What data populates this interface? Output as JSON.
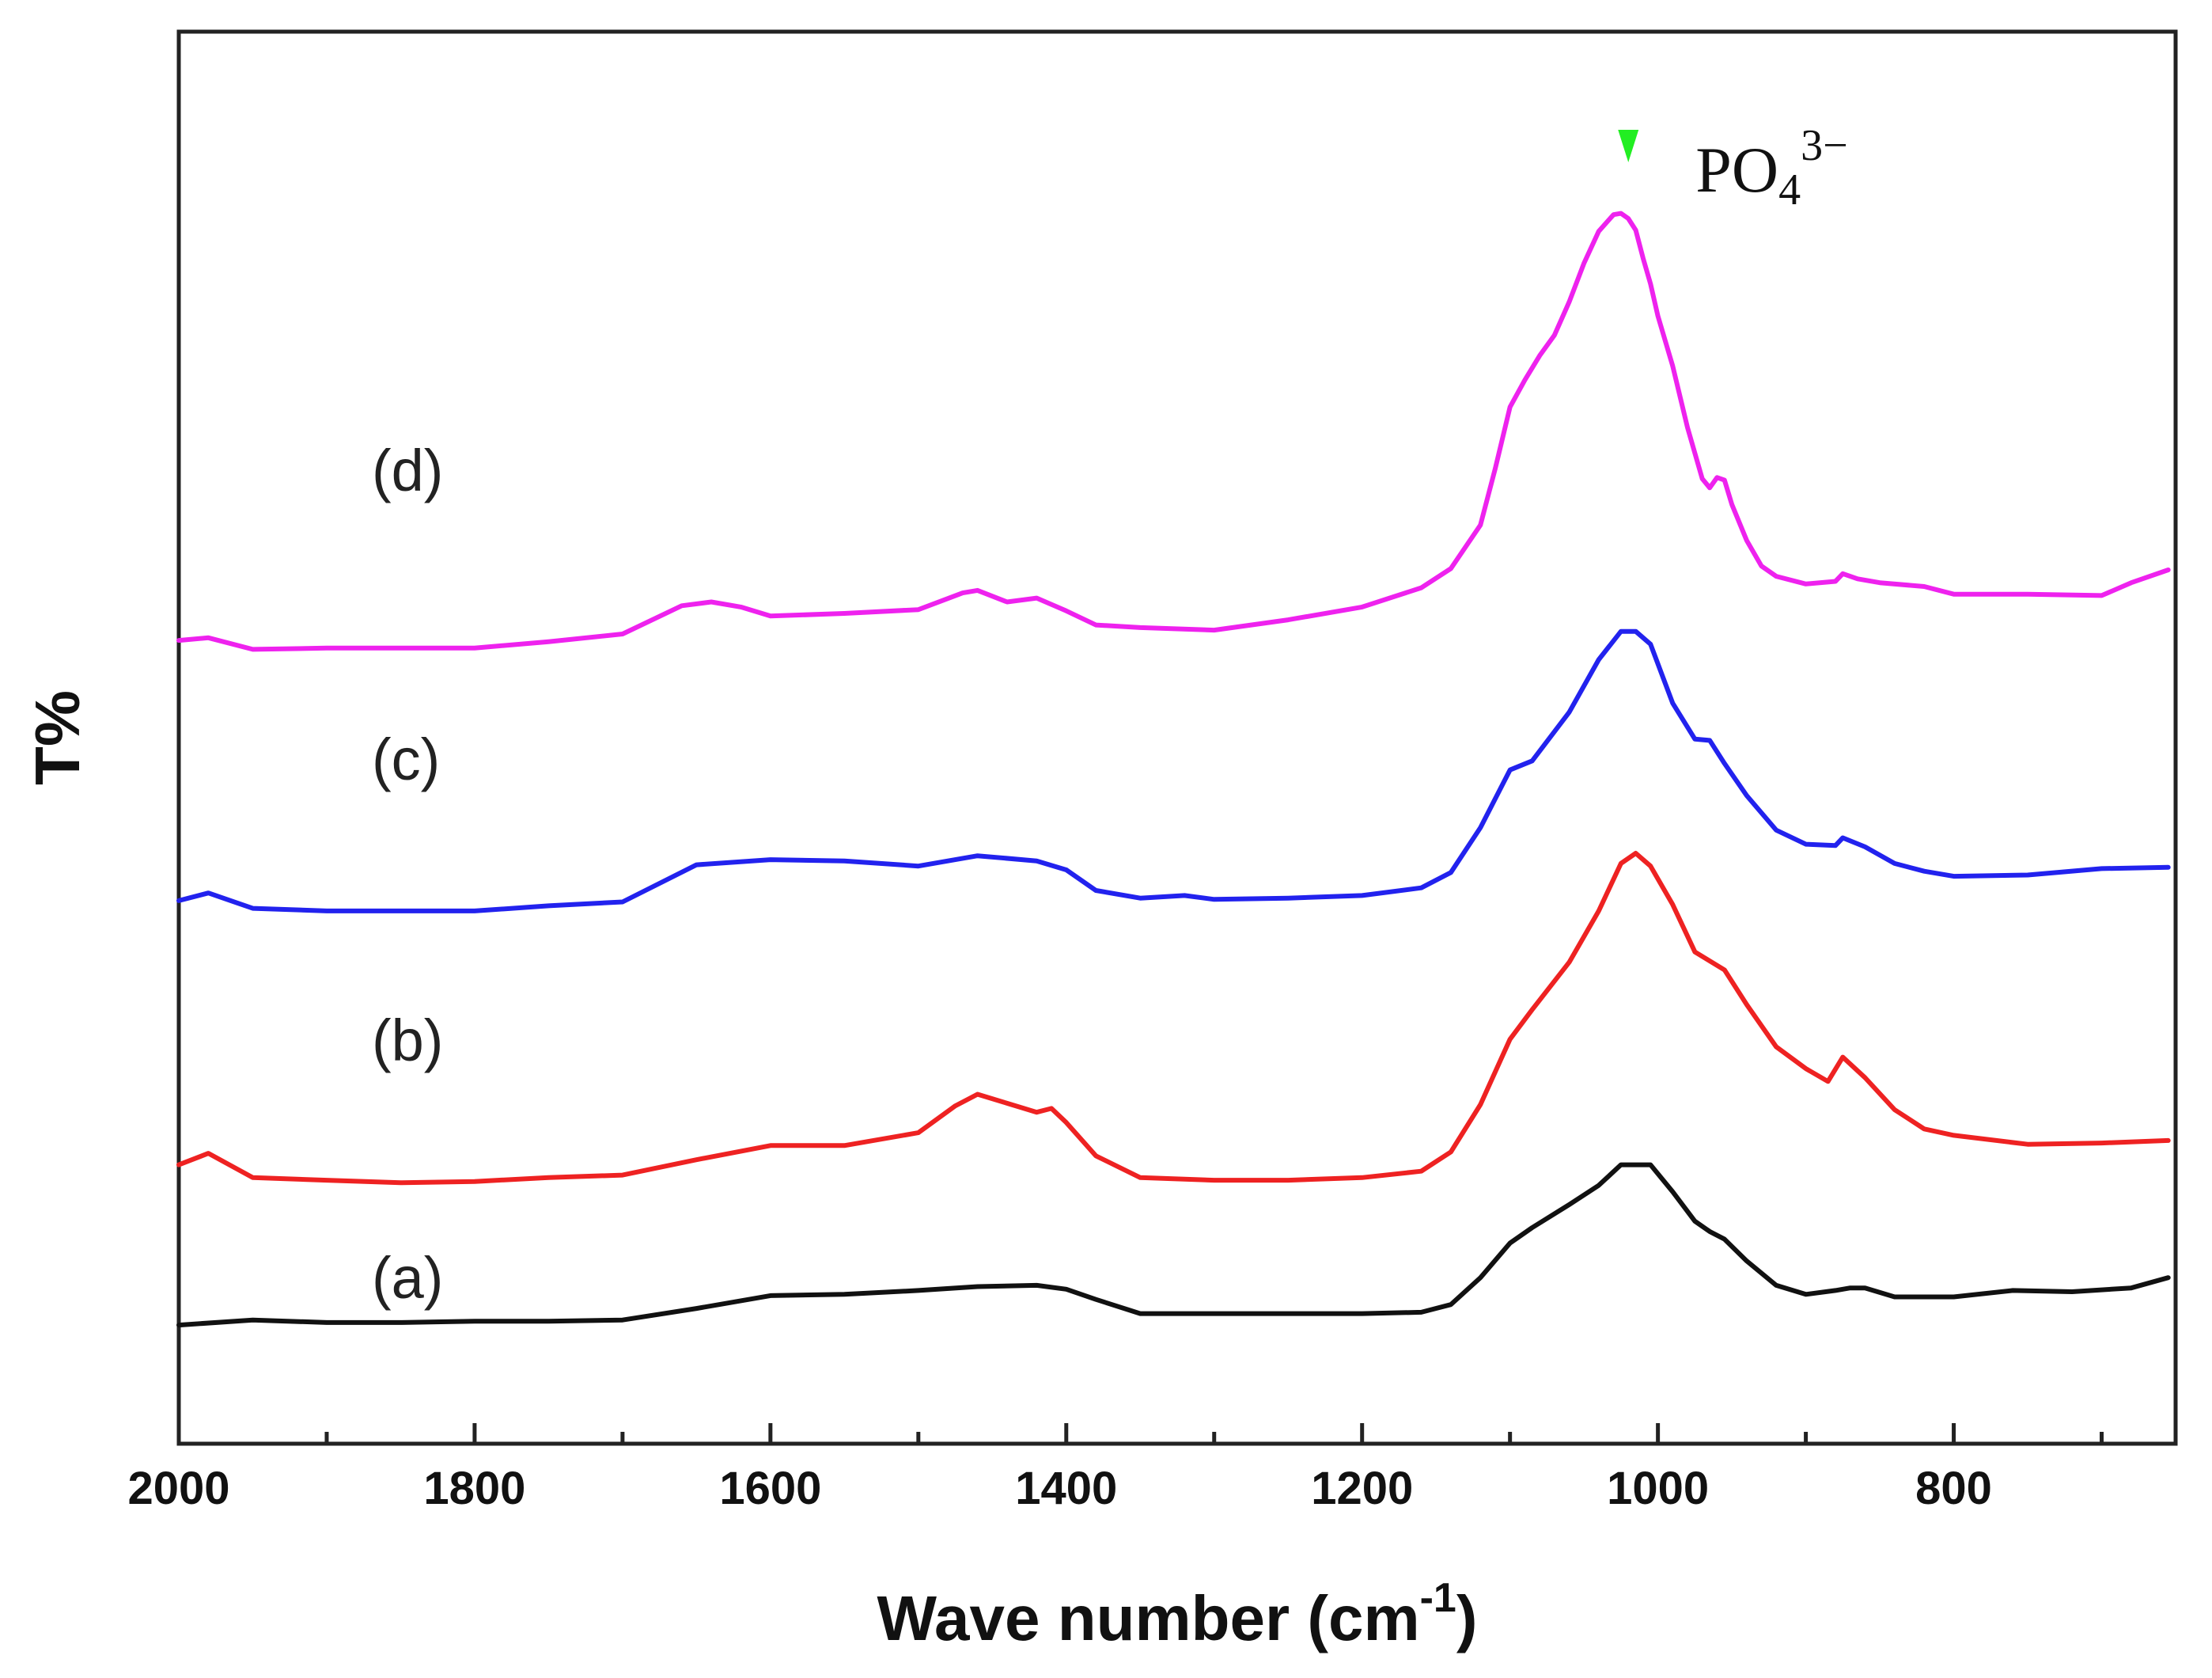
{
  "chart_data": {
    "type": "line",
    "title": "",
    "xlabel": "Wave number (cm",
    "xlabel_sup": "-1",
    "xlabel_close": ")",
    "ylabel": "T%",
    "xlim": [
      2000,
      650
    ],
    "x_reversed": true,
    "ylim": [
      0,
      100
    ],
    "y_ticks_shown": false,
    "x_ticks": [
      2000,
      1800,
      1600,
      1400,
      1200,
      1000,
      800
    ],
    "x_tick_labels": [
      "2000",
      "1800",
      "1600",
      "1400",
      "1200",
      "1000",
      "800"
    ],
    "x_minor_ticks": [
      1900,
      1700,
      1500,
      1300,
      1100,
      900,
      700
    ],
    "grid": false,
    "annotation": {
      "text": "PO",
      "sub": "4",
      "sup": "3−",
      "x": 1020,
      "marker_color": "#22ee22"
    },
    "series": [
      {
        "name": "(a)",
        "color": "#111111",
        "x": [
          2000,
          1950,
          1900,
          1850,
          1800,
          1750,
          1700,
          1650,
          1600,
          1550,
          1500,
          1460,
          1420,
          1400,
          1380,
          1350,
          1300,
          1250,
          1200,
          1160,
          1140,
          1120,
          1100,
          1085,
          1060,
          1040,
          1025,
          1015,
          1005,
          990,
          975,
          965,
          955,
          940,
          920,
          900,
          880,
          870,
          860,
          840,
          800,
          760,
          720,
          680,
          655
        ],
        "y": [
          5.3,
          5.7,
          5.5,
          5.5,
          5.6,
          5.6,
          5.7,
          6.6,
          7.6,
          7.7,
          8.0,
          8.3,
          8.4,
          8.1,
          7.3,
          6.2,
          6.2,
          6.2,
          6.2,
          6.3,
          6.9,
          9.0,
          11.7,
          12.9,
          14.7,
          16.2,
          17.8,
          17.8,
          17.8,
          15.7,
          13.4,
          12.6,
          12.0,
          10.3,
          8.4,
          7.7,
          8.0,
          8.2,
          8.2,
          7.5,
          7.5,
          8.0,
          7.9,
          8.2,
          9.0
        ]
      },
      {
        "name": "(b)",
        "color": "#ee2222",
        "x": [
          2000,
          1980,
          1950,
          1900,
          1850,
          1800,
          1750,
          1700,
          1650,
          1600,
          1550,
          1500,
          1475,
          1460,
          1440,
          1420,
          1410,
          1400,
          1380,
          1350,
          1300,
          1250,
          1200,
          1160,
          1140,
          1120,
          1100,
          1085,
          1060,
          1040,
          1025,
          1015,
          1005,
          990,
          975,
          965,
          955,
          940,
          920,
          900,
          885,
          875,
          860,
          840,
          820,
          800,
          750,
          700,
          655
        ],
        "y": [
          17.8,
          18.7,
          16.8,
          16.6,
          16.4,
          16.5,
          16.8,
          17.0,
          18.2,
          19.3,
          19.3,
          20.3,
          22.4,
          23.3,
          22.6,
          21.9,
          22.2,
          21.1,
          18.5,
          16.8,
          16.6,
          16.6,
          16.8,
          17.3,
          18.8,
          22.5,
          27.6,
          29.9,
          33.6,
          37.6,
          41.3,
          42.1,
          41.1,
          38.1,
          34.4,
          33.7,
          33.0,
          30.3,
          27.0,
          25.3,
          24.3,
          26.2,
          24.6,
          22.1,
          20.6,
          20.1,
          19.4,
          19.5,
          19.7
        ]
      },
      {
        "name": "(c)",
        "color": "#2222ee",
        "x": [
          2000,
          1980,
          1950,
          1900,
          1850,
          1800,
          1750,
          1700,
          1650,
          1600,
          1550,
          1500,
          1460,
          1420,
          1400,
          1380,
          1350,
          1320,
          1300,
          1250,
          1200,
          1160,
          1140,
          1120,
          1100,
          1085,
          1060,
          1040,
          1025,
          1015,
          1005,
          990,
          975,
          965,
          955,
          940,
          920,
          900,
          880,
          875,
          860,
          840,
          820,
          800,
          750,
          700,
          655
        ],
        "y": [
          38.4,
          39.0,
          37.8,
          37.6,
          37.6,
          37.6,
          38.0,
          38.3,
          41.2,
          41.6,
          41.5,
          41.1,
          41.9,
          41.5,
          40.8,
          39.2,
          38.6,
          38.8,
          38.5,
          38.6,
          38.8,
          39.4,
          40.6,
          44.1,
          48.6,
          49.3,
          53.1,
          57.2,
          59.4,
          59.4,
          58.4,
          53.8,
          51.0,
          50.9,
          49.1,
          46.6,
          43.9,
          42.8,
          42.7,
          43.3,
          42.6,
          41.3,
          40.7,
          40.3,
          40.4,
          40.9,
          41.0
        ]
      },
      {
        "name": "(d)",
        "color": "#ee22ee",
        "x": [
          2000,
          1980,
          1950,
          1900,
          1850,
          1800,
          1750,
          1700,
          1660,
          1640,
          1620,
          1600,
          1550,
          1500,
          1470,
          1460,
          1440,
          1420,
          1400,
          1380,
          1350,
          1300,
          1250,
          1200,
          1160,
          1140,
          1120,
          1110,
          1100,
          1090,
          1080,
          1070,
          1060,
          1050,
          1040,
          1030,
          1025,
          1020,
          1015,
          1010,
          1005,
          1000,
          990,
          980,
          970,
          965,
          960,
          955,
          950,
          940,
          930,
          920,
          900,
          880,
          875,
          865,
          850,
          820,
          800,
          750,
          700,
          680,
          655
        ],
        "y": [
          58.7,
          58.9,
          58.0,
          58.1,
          58.1,
          58.1,
          58.6,
          59.2,
          61.4,
          61.7,
          61.3,
          60.6,
          60.8,
          61.1,
          62.4,
          62.6,
          61.7,
          62.0,
          61.0,
          59.9,
          59.7,
          59.5,
          60.3,
          61.3,
          62.8,
          64.3,
          67.7,
          72.1,
          76.9,
          79.0,
          80.9,
          82.5,
          85.1,
          88.1,
          90.6,
          91.9,
          92.0,
          91.6,
          90.7,
          88.5,
          86.5,
          84.0,
          80.1,
          75.3,
          71.3,
          70.6,
          71.4,
          71.2,
          69.3,
          66.5,
          64.5,
          63.7,
          63.1,
          63.3,
          63.9,
          63.5,
          63.2,
          62.9,
          62.3,
          62.3,
          62.2,
          63.2,
          64.2
        ]
      }
    ]
  }
}
